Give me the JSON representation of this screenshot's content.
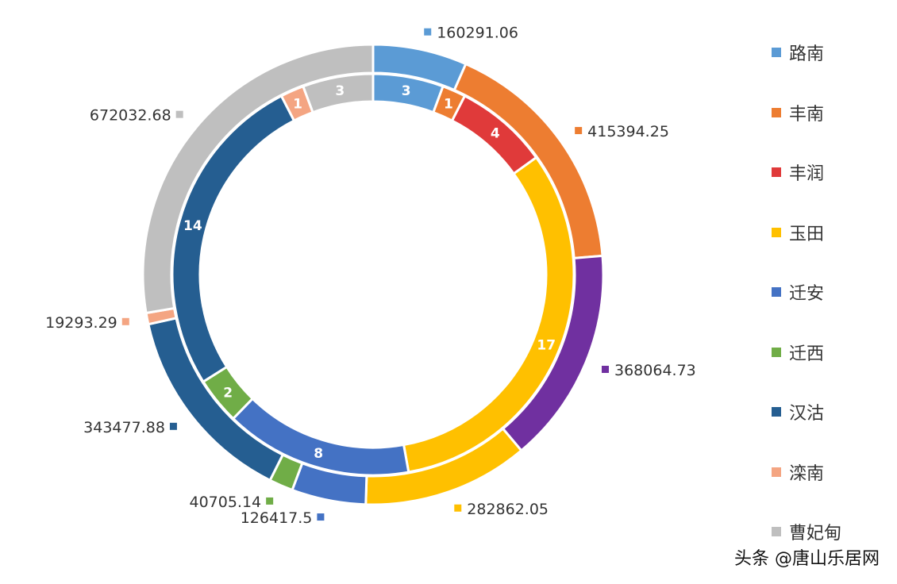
{
  "chart_data": {
    "type": "pie",
    "subtype": "nested-donut",
    "legend_position": "right",
    "categories": [
      "路南",
      "丰南",
      "丰润",
      "玉田",
      "迁安",
      "迁西",
      "汉沽",
      "滦南",
      "曹妃甸"
    ],
    "colors": [
      "#5B9BD5",
      "#ED7D31",
      "#E03A3A",
      "#FFC000",
      "#4472C4",
      "#70AD47",
      "#255E91",
      "#F4A582",
      "#BFBFBF"
    ],
    "inner_ring": {
      "values": [
        3,
        1,
        4,
        17,
        8,
        2,
        14,
        1,
        3
      ],
      "labels": [
        "3",
        "1",
        "4",
        "17",
        "8",
        "2",
        "14",
        "1",
        "3"
      ]
    },
    "outer_ring": {
      "values": [
        160291.06,
        415394.25,
        368064.73,
        282862.05,
        126417.5,
        40705.14,
        343477.88,
        19293.29,
        672032.68
      ],
      "labels": [
        "160291.06",
        "415394.25",
        "368064.73",
        "282862.05",
        "126417.5",
        "40705.14",
        "343477.88",
        "19293.29",
        "672032.68"
      ],
      "segment_colors": [
        "#5B9BD5",
        "#ED7D31",
        "#7030A0",
        "#FFC000",
        "#4472C4",
        "#70AD47",
        "#255E91",
        "#F4A582",
        "#BFBFBF"
      ]
    }
  },
  "watermark": "头条 @唐山乐居网"
}
